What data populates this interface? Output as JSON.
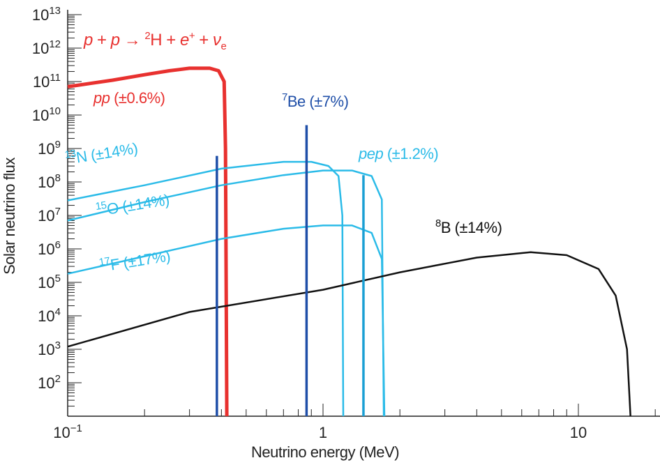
{
  "chart_data": {
    "type": "line",
    "xlabel": "Neutrino energy (MeV)",
    "ylabel": "Solar neutrino flux",
    "xscale": "log",
    "yscale": "log",
    "xlim": [
      0.1,
      21
    ],
    "ylim": [
      10,
      10000000000000.0
    ],
    "x_ticks": [
      {
        "value": 0.1,
        "base": "10",
        "exp": "−1"
      },
      {
        "value": 1,
        "base": "1",
        "exp": ""
      },
      {
        "value": 10,
        "base": "10",
        "exp": ""
      }
    ],
    "y_ticks": [
      {
        "value": 10000000000000.0,
        "base": "10",
        "exp": "13"
      },
      {
        "value": 1000000000000.0,
        "base": "10",
        "exp": "12"
      },
      {
        "value": 100000000000.0,
        "base": "10",
        "exp": "11"
      },
      {
        "value": 10000000000.0,
        "base": "10",
        "exp": "10"
      },
      {
        "value": 1000000000.0,
        "base": "10",
        "exp": "9"
      },
      {
        "value": 100000000.0,
        "base": "10",
        "exp": "8"
      },
      {
        "value": 10000000.0,
        "base": "10",
        "exp": "7"
      },
      {
        "value": 1000000.0,
        "base": "10",
        "exp": "6"
      },
      {
        "value": 100000.0,
        "base": "10",
        "exp": "5"
      },
      {
        "value": 10000.0,
        "base": "10",
        "exp": "4"
      },
      {
        "value": 1000.0,
        "base": "10",
        "exp": "3"
      },
      {
        "value": 100.0,
        "base": "10",
        "exp": "2"
      }
    ],
    "grid": false,
    "reaction_annotation": {
      "text1": "p",
      "text2": " + ",
      "text3": "p",
      "text4": " → ",
      "sup1": "2",
      "text5": "H + ",
      "text6": "e",
      "sup2": "+",
      "text7": " + ",
      "text8": "ν",
      "sub": "e"
    },
    "series": [
      {
        "id": "pp",
        "label_iso": "pp",
        "label_unc": " (±0.6%)",
        "color": "#e8312f",
        "kind": "spectrum",
        "points": [
          [
            0.1,
            70000000000.0
          ],
          [
            0.15,
            110000000000.0
          ],
          [
            0.2,
            160000000000.0
          ],
          [
            0.25,
            210000000000.0
          ],
          [
            0.3,
            250000000000.0
          ],
          [
            0.36,
            250000000000.0
          ],
          [
            0.39,
            210000000000.0
          ],
          [
            0.41,
            100000000000.0
          ],
          [
            0.415,
            1000000000.0
          ],
          [
            0.42,
            10
          ]
        ]
      },
      {
        "id": "13N",
        "label_sup": "13",
        "label_iso": "N",
        "label_unc": " (±14%)",
        "color": "#2bbbe8",
        "kind": "spectrum",
        "points": [
          [
            0.1,
            28000000.0
          ],
          [
            0.2,
            80000000.0
          ],
          [
            0.4,
            250000000.0
          ],
          [
            0.7,
            400000000.0
          ],
          [
            0.9,
            400000000.0
          ],
          [
            1.05,
            300000000.0
          ],
          [
            1.15,
            150000000.0
          ],
          [
            1.19,
            10000000.0
          ],
          [
            1.2,
            10
          ]
        ]
      },
      {
        "id": "15O",
        "label_sup": "15",
        "label_iso": "O",
        "label_unc": " (±14%)",
        "color": "#2bbbe8",
        "kind": "spectrum",
        "points": [
          [
            0.1,
            7000000.0
          ],
          [
            0.2,
            25000000.0
          ],
          [
            0.4,
            80000000.0
          ],
          [
            0.7,
            160000000.0
          ],
          [
            1.0,
            220000000.0
          ],
          [
            1.3,
            220000000.0
          ],
          [
            1.55,
            150000000.0
          ],
          [
            1.7,
            30000000.0
          ],
          [
            1.73,
            10
          ]
        ]
      },
      {
        "id": "17F",
        "label_sup": "17",
        "label_iso": "F",
        "label_unc": " (±17%)",
        "color": "#2bbbe8",
        "kind": "spectrum",
        "points": [
          [
            0.1,
            180000.0
          ],
          [
            0.2,
            600000.0
          ],
          [
            0.4,
            2000000.0
          ],
          [
            0.7,
            4000000.0
          ],
          [
            1.0,
            5000000.0
          ],
          [
            1.3,
            5000000.0
          ],
          [
            1.55,
            3000000.0
          ],
          [
            1.7,
            500000.0
          ],
          [
            1.74,
            10
          ]
        ]
      },
      {
        "id": "8B",
        "label_sup": "8",
        "label_iso": "B",
        "label_unc": " (±14%)",
        "color": "#111111",
        "kind": "spectrum",
        "points": [
          [
            0.1,
            1200.0
          ],
          [
            0.3,
            13000.0
          ],
          [
            1,
            60000.0
          ],
          [
            2,
            200000.0
          ],
          [
            4,
            550000.0
          ],
          [
            6.5,
            800000.0
          ],
          [
            9,
            650000.0
          ],
          [
            12,
            250000.0
          ],
          [
            14,
            40000.0
          ],
          [
            15.5,
            1000.0
          ],
          [
            16,
            10
          ]
        ]
      },
      {
        "id": "7Be",
        "label_sup": "7",
        "label_iso": "Be",
        "label_unc": " (±7%)",
        "color": "#1f4fa8",
        "kind": "lines",
        "lines": [
          [
            0.384,
            600000000.0
          ],
          [
            0.862,
            5000000000.0
          ]
        ]
      },
      {
        "id": "pep",
        "label_iso": "pep",
        "label_unc": " (±1.2%)",
        "color": "#1a9fd4",
        "kind": "lines",
        "lines": [
          [
            1.44,
            160000000.0
          ]
        ]
      }
    ]
  }
}
